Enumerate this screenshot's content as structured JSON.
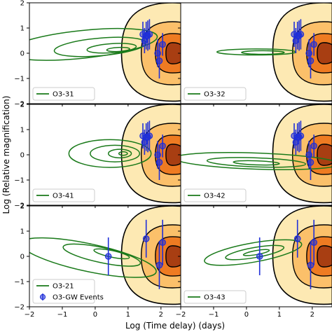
{
  "figure": {
    "xlabel": "Log (Time delay) (days)",
    "ylabel": "Log (Relative magnification)"
  },
  "chart_data": {
    "type": "scatter",
    "rows": 3,
    "cols": 2,
    "xlim": [
      -2,
      2.6
    ],
    "ylim": [
      -2,
      2
    ],
    "x_ticks": [
      -2,
      -1,
      0,
      1,
      2
    ],
    "y_ticks": [
      -2,
      -1,
      0,
      1,
      2
    ],
    "colors": {
      "contour_green": "#1a7a1a",
      "events_blue": "#1f2fd8",
      "fill_outer": "#fde9b3",
      "fill_mid": "#fbc06a",
      "fill_inner": "#ee7b22",
      "fill_core": "#a83e12"
    },
    "event_series_label": "O3-GW Events",
    "events_top": [
      {
        "x": 1.45,
        "y": 0.75,
        "err": 0.5
      },
      {
        "x": 1.55,
        "y": 0.7,
        "err": 0.55
      },
      {
        "x": 1.6,
        "y": 0.7,
        "err": 0.6
      },
      {
        "x": 1.65,
        "y": 0.75,
        "err": 0.6
      },
      {
        "x": 1.5,
        "y": 0.5,
        "err": 0.5
      },
      {
        "x": 2.05,
        "y": 0.35,
        "err": 0.45
      },
      {
        "x": 1.95,
        "y": -0.3,
        "err": 0.7
      },
      {
        "x": 1.9,
        "y": 0.0,
        "err": 0.55
      }
    ],
    "events_bottom": [
      {
        "x": 0.4,
        "y": 0.0,
        "err": 0.75
      },
      {
        "x": 1.55,
        "y": 0.7,
        "err": 0.75
      },
      {
        "x": 1.95,
        "y": -0.35,
        "err": 0.95
      },
      {
        "x": 2.05,
        "y": 0.55,
        "err": 0.9
      }
    ],
    "panels": [
      {
        "name": "O3-31",
        "events": "top",
        "show_event_legend": false
      },
      {
        "name": "O3-32",
        "events": "top",
        "show_event_legend": false
      },
      {
        "name": "O3-41",
        "events": "top",
        "show_event_legend": false
      },
      {
        "name": "O3-42",
        "events": "top",
        "show_event_legend": false
      },
      {
        "name": "O3-21",
        "events": "bottom",
        "show_event_legend": true
      },
      {
        "name": "O3-43",
        "events": "bottom",
        "show_event_legend": false
      }
    ]
  }
}
